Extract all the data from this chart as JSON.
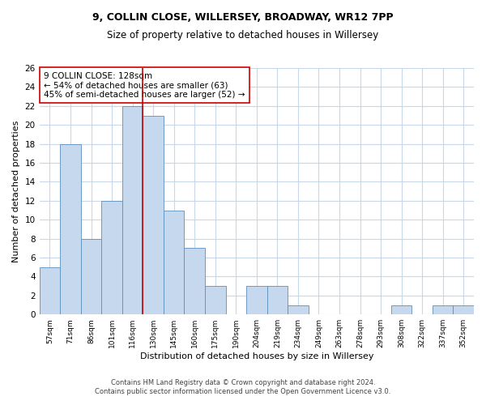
{
  "title_line1": "9, COLLIN CLOSE, WILLERSEY, BROADWAY, WR12 7PP",
  "title_line2": "Size of property relative to detached houses in Willersey",
  "xlabel": "Distribution of detached houses by size in Willersey",
  "ylabel": "Number of detached properties",
  "categories": [
    "57sqm",
    "71sqm",
    "86sqm",
    "101sqm",
    "116sqm",
    "130sqm",
    "145sqm",
    "160sqm",
    "175sqm",
    "190sqm",
    "204sqm",
    "219sqm",
    "234sqm",
    "249sqm",
    "263sqm",
    "278sqm",
    "293sqm",
    "308sqm",
    "322sqm",
    "337sqm",
    "352sqm"
  ],
  "values": [
    5,
    18,
    8,
    12,
    22,
    21,
    11,
    7,
    3,
    0,
    3,
    3,
    1,
    0,
    0,
    0,
    0,
    1,
    0,
    1,
    1
  ],
  "bar_color": "#c5d8ed",
  "bar_edge_color": "#5a8fc0",
  "vline_index": 5,
  "vline_color": "#cc0000",
  "annotation_text": "9 COLLIN CLOSE: 128sqm\n← 54% of detached houses are smaller (63)\n45% of semi-detached houses are larger (52) →",
  "annotation_box_color": "#ffffff",
  "annotation_box_edge": "#cc0000",
  "ylim": [
    0,
    26
  ],
  "yticks": [
    0,
    2,
    4,
    6,
    8,
    10,
    12,
    14,
    16,
    18,
    20,
    22,
    24,
    26
  ],
  "footer_line1": "Contains HM Land Registry data © Crown copyright and database right 2024.",
  "footer_line2": "Contains public sector information licensed under the Open Government Licence v3.0.",
  "background_color": "#ffffff",
  "grid_color": "#c8d8e8",
  "title1_fontsize": 9,
  "title2_fontsize": 8.5,
  "ylabel_fontsize": 8,
  "xlabel_fontsize": 8,
  "annot_fontsize": 7.5,
  "footer_fontsize": 6
}
